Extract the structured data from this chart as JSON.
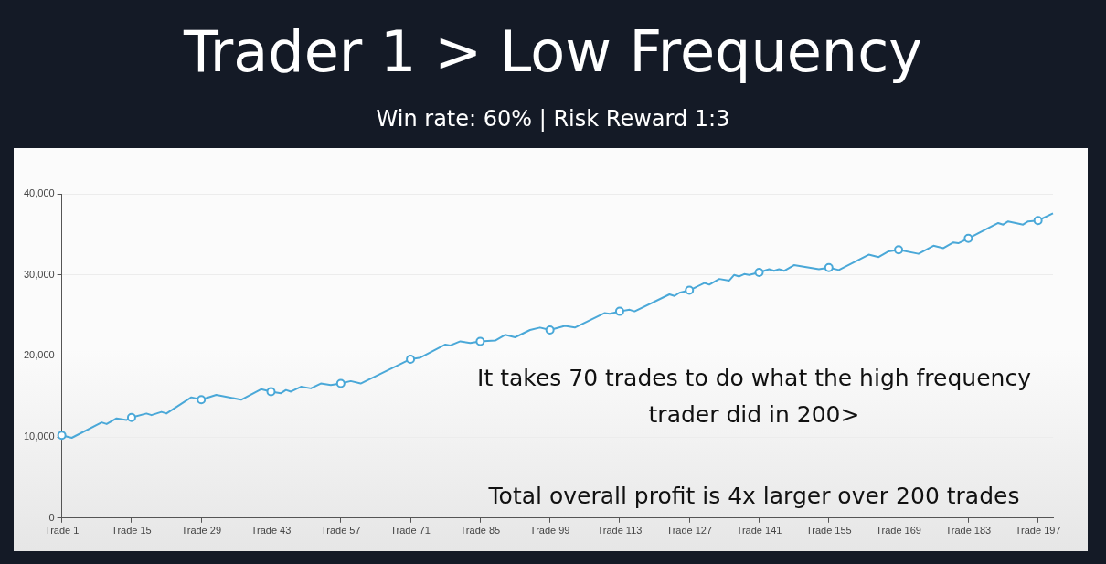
{
  "chart_data": {
    "type": "line",
    "title": "Trader 1 > Low Frequency",
    "subtitle": "Win rate: 60% | Risk Reward 1:3",
    "annotations": [
      "It takes 70 trades to do what the high frequency trader did in 200>",
      "Total overall profit is 4x larger over 200 trades"
    ],
    "categories": [
      "Trade 1",
      null,
      null,
      null,
      null,
      null,
      null,
      null,
      null,
      null,
      null,
      null,
      null,
      null,
      "Trade 15",
      null,
      null,
      null,
      null,
      null,
      null,
      null,
      null,
      null,
      null,
      null,
      null,
      null,
      "Trade 29",
      null,
      null,
      null,
      null,
      null,
      null,
      null,
      null,
      null,
      null,
      null,
      null,
      null,
      "Trade 43",
      null,
      null,
      null,
      null,
      null,
      null,
      null,
      null,
      null,
      null,
      null,
      null,
      null,
      "Trade 57",
      null,
      null,
      null,
      null,
      null,
      null,
      null,
      null,
      null,
      null,
      null,
      null,
      null,
      "Trade 71",
      null,
      null,
      null,
      null,
      null,
      null,
      null,
      null,
      null,
      null,
      null,
      null,
      null,
      "Trade 85",
      null,
      null,
      null,
      null,
      null,
      null,
      null,
      null,
      null,
      null,
      null,
      null,
      null,
      "Trade 99",
      null,
      null,
      null,
      null,
      null,
      null,
      null,
      null,
      null,
      null,
      null,
      null,
      null,
      "Trade 113",
      null,
      null,
      null,
      null,
      null,
      null,
      null,
      null,
      null,
      null,
      null,
      null,
      null,
      "Trade 127",
      null,
      null,
      null,
      null,
      null,
      null,
      null,
      null,
      null,
      null,
      null,
      null,
      null,
      "Trade 141",
      null,
      null,
      null,
      null,
      null,
      null,
      null,
      null,
      null,
      null,
      null,
      null,
      null,
      "Trade 155",
      null,
      null,
      null,
      null,
      null,
      null,
      null,
      null,
      null,
      null,
      null,
      null,
      null,
      "Trade 169",
      null,
      null,
      null,
      null,
      null,
      null,
      null,
      null,
      null,
      null,
      null,
      null,
      null,
      "Trade 183",
      null,
      null,
      null,
      null,
      null,
      null,
      null,
      null,
      null,
      null,
      null,
      null,
      null,
      "Trade 197",
      null,
      null,
      null
    ],
    "series": [
      {
        "type": "scatter",
        "color": "#4aa8d8",
        "values": [
          10200,
          null,
          null,
          null,
          null,
          null,
          null,
          null,
          null,
          null,
          null,
          null,
          null,
          null,
          12400,
          null,
          null,
          null,
          null,
          null,
          null,
          null,
          null,
          null,
          null,
          null,
          null,
          null,
          14600,
          null,
          null,
          null,
          null,
          null,
          null,
          null,
          null,
          null,
          null,
          null,
          null,
          null,
          15600,
          null,
          null,
          null,
          null,
          null,
          null,
          null,
          null,
          null,
          null,
          null,
          null,
          null,
          16600,
          null,
          null,
          null,
          null,
          null,
          null,
          null,
          null,
          null,
          null,
          null,
          null,
          null,
          19600,
          null,
          null,
          null,
          null,
          null,
          null,
          null,
          null,
          null,
          null,
          null,
          null,
          null,
          21800,
          null,
          null,
          null,
          null,
          null,
          null,
          null,
          null,
          null,
          null,
          null,
          null,
          null,
          23200,
          null,
          null,
          null,
          null,
          null,
          null,
          null,
          null,
          null,
          null,
          null,
          null,
          null,
          25500,
          null,
          null,
          null,
          null,
          null,
          null,
          null,
          null,
          null,
          null,
          null,
          null,
          null,
          28100,
          null,
          null,
          null,
          null,
          null,
          null,
          null,
          null,
          null,
          null,
          null,
          null,
          null,
          30300,
          null,
          null,
          null,
          null,
          null,
          null,
          null,
          null,
          null,
          null,
          null,
          null,
          null,
          30900,
          null,
          null,
          null,
          null,
          null,
          null,
          null,
          null,
          null,
          null,
          null,
          null,
          null,
          33100,
          null,
          null,
          null,
          null,
          null,
          null,
          null,
          null,
          null,
          null,
          null,
          null,
          null,
          34500,
          null,
          null,
          null,
          null,
          null,
          null,
          null,
          null,
          null,
          null,
          null,
          null,
          null,
          36700,
          null,
          null,
          null
        ]
      },
      {
        "color": "#4aa8d8",
        "marker": "none",
        "values": [
          10200,
          null,
          9900,
          null,
          null,
          null,
          null,
          null,
          11800,
          11600,
          null,
          12300,
          null,
          12100,
          12400,
          null,
          null,
          12900,
          12700,
          null,
          13100,
          12900,
          null,
          null,
          null,
          null,
          14900,
          null,
          14600,
          null,
          null,
          15200,
          null,
          null,
          null,
          null,
          14600,
          null,
          null,
          null,
          15900,
          null,
          15600,
          null,
          15400,
          15800,
          15600,
          null,
          16200,
          null,
          16000,
          null,
          16600,
          null,
          16400,
          null,
          16600,
          null,
          16900,
          null,
          16600,
          null,
          null,
          null,
          null,
          null,
          null,
          null,
          null,
          null,
          19600,
          null,
          19800,
          null,
          null,
          null,
          null,
          21400,
          21300,
          null,
          21800,
          null,
          21600,
          null,
          21800,
          null,
          null,
          21900,
          null,
          22600,
          null,
          22300,
          null,
          null,
          23200,
          null,
          23500,
          null,
          23200,
          null,
          null,
          23700,
          null,
          23500,
          null,
          null,
          null,
          null,
          null,
          25300,
          25200,
          null,
          25500,
          null,
          25700,
          25500,
          null,
          null,
          null,
          null,
          null,
          null,
          27600,
          27400,
          27800,
          null,
          28100,
          null,
          null,
          29000,
          28800,
          null,
          29500,
          null,
          29300,
          30000,
          29800,
          30100,
          30000,
          null,
          30300,
          null,
          30700,
          30500,
          30700,
          30500,
          null,
          31200,
          null,
          null,
          null,
          null,
          30700,
          null,
          30900,
          null,
          30600,
          null,
          null,
          null,
          null,
          null,
          32500,
          null,
          32200,
          null,
          32900,
          null,
          33100,
          null,
          null,
          null,
          32600,
          null,
          null,
          33600,
          null,
          33300,
          null,
          34000,
          33900,
          null,
          34500,
          null,
          null,
          null,
          null,
          null,
          36400,
          36200,
          36600,
          null,
          null,
          36200,
          36600,
          null,
          36700,
          null,
          null,
          37600
        ]
      }
    ],
    "ylim": [
      0,
      40000
    ],
    "yticks": [
      0,
      {
        "value": 10000,
        "label": "10,000"
      },
      {
        "value": 20000,
        "label": "20,000"
      },
      {
        "value": 30000,
        "label": "30,000"
      },
      {
        "value": 40000,
        "label": "40,000"
      }
    ],
    "grid": "y",
    "marker": "circle",
    "line_style": "solid"
  }
}
